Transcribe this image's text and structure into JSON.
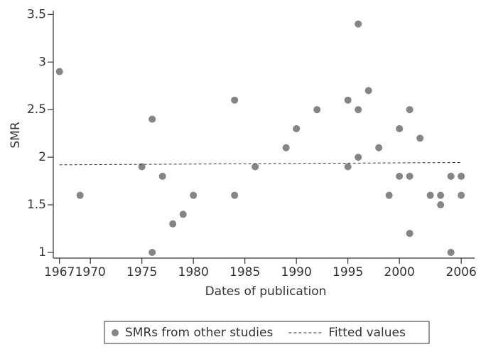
{
  "chart_data": {
    "type": "scatter",
    "xlabel": "Dates of publication",
    "ylabel": "SMR",
    "xlim": [
      1966.4,
      2007.3
    ],
    "ylim": [
      0.94,
      3.54
    ],
    "xticks": [
      1967,
      1970,
      1975,
      1980,
      1985,
      1990,
      1995,
      2000,
      2006
    ],
    "yticks": [
      1,
      1.5,
      2,
      2.5,
      3,
      3.5
    ],
    "legend": "bottom",
    "series": [
      {
        "name": "SMRs from other studies",
        "type": "scatter",
        "color": "#858585",
        "x": [
          1967,
          1969,
          1975,
          1976,
          1976,
          1977,
          1978,
          1979,
          1980,
          1984,
          1984,
          1986,
          1989,
          1990,
          1992,
          1995,
          1995,
          1996,
          1996,
          1996,
          1997,
          1998,
          1999,
          2000,
          2000,
          2001,
          2001,
          2001,
          2002,
          2003,
          2004,
          2004,
          2005,
          2005,
          2006,
          2006
        ],
        "values": [
          2.9,
          1.6,
          1.9,
          2.4,
          1.0,
          1.8,
          1.3,
          1.4,
          1.6,
          2.6,
          1.6,
          1.9,
          2.1,
          2.3,
          2.5,
          2.6,
          1.9,
          3.4,
          2.5,
          2.0,
          2.7,
          2.1,
          1.6,
          2.3,
          1.8,
          2.5,
          1.8,
          1.2,
          2.2,
          1.6,
          1.6,
          1.5,
          1.8,
          1.0,
          1.8,
          1.6
        ]
      },
      {
        "name": "Fitted values",
        "type": "line",
        "dashed": true,
        "color": "#333333",
        "x": [
          1967,
          2006
        ],
        "values": [
          1.92,
          1.945
        ]
      }
    ]
  }
}
